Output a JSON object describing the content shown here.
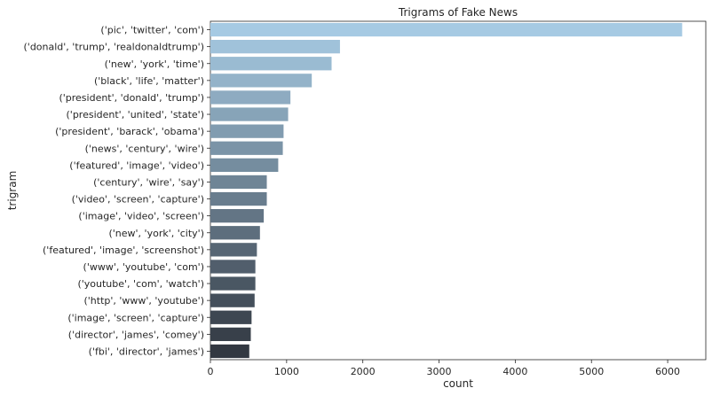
{
  "chart_data": {
    "type": "bar",
    "orientation": "horizontal",
    "title": "Trigrams of Fake News",
    "xlabel": "count",
    "ylabel": "trigram",
    "xlim": [
      0,
      6500
    ],
    "xticks": [
      0,
      1000,
      2000,
      3000,
      4000,
      5000,
      6000
    ],
    "grid": false,
    "categories": [
      "('pic', 'twitter', 'com')",
      "('donald', 'trump', 'realdonaldtrump')",
      "('new', 'york', 'time')",
      "('black', 'life', 'matter')",
      "('president', 'donald', 'trump')",
      "('president', 'united', 'state')",
      "('president', 'barack', 'obama')",
      "('news', 'century', 'wire')",
      "('featured', 'image', 'video')",
      "('century', 'wire', 'say')",
      "('video', 'screen', 'capture')",
      "('image', 'video', 'screen')",
      "('new', 'york', 'city')",
      "('featured', 'image', 'screenshot')",
      "('www', 'youtube', 'com')",
      "('youtube', 'com', 'watch')",
      "('http', 'www', 'youtube')",
      "('image', 'screen', 'capture')",
      "('director', 'james', 'comey')",
      "('fbi', 'director', 'james')"
    ],
    "values": [
      6190,
      1700,
      1590,
      1330,
      1050,
      1020,
      960,
      950,
      890,
      740,
      740,
      700,
      650,
      610,
      590,
      590,
      580,
      540,
      530,
      510
    ],
    "palette_start": "#a6cae3",
    "palette_end": "#323841"
  }
}
